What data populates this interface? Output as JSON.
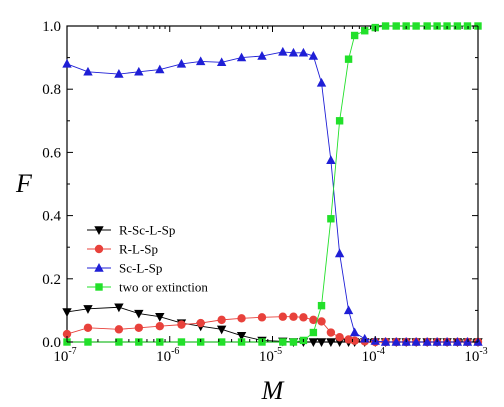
{
  "chart_data": {
    "type": "line",
    "xlabel": "M",
    "ylabel": "F",
    "x_scale": "log",
    "xlim": [
      1e-07,
      0.001
    ],
    "ylim": [
      0,
      1.0
    ],
    "x_ticks": [
      {
        "base": "10",
        "exp": "-7",
        "value": 1e-07
      },
      {
        "base": "10",
        "exp": "-6",
        "value": 1e-06
      },
      {
        "base": "10",
        "exp": "-5",
        "value": 1e-05
      },
      {
        "base": "10",
        "exp": "-4",
        "value": 0.0001
      },
      {
        "base": "10",
        "exp": "-3",
        "value": 0.001
      }
    ],
    "y_ticks": [
      "0.0",
      "0.2",
      "0.4",
      "0.6",
      "0.8",
      "1.0"
    ],
    "y_tick_values": [
      0,
      0.2,
      0.4,
      0.6,
      0.8,
      1.0
    ],
    "grid": false,
    "legend_position": "bottom-left",
    "x": [
      1e-07,
      1.6e-07,
      3.2e-07,
      5e-07,
      8e-07,
      1.3e-06,
      2e-06,
      3.2e-06,
      5e-06,
      7.9e-06,
      1.26e-05,
      1.6e-05,
      2e-05,
      2.5e-05,
      3e-05,
      3.7e-05,
      4.5e-05,
      5.5e-05,
      6.3e-05,
      7.9e-05,
      0.0001,
      0.000126,
      0.00016,
      0.0002,
      0.00025,
      0.00032,
      0.0004,
      0.0005,
      0.00063,
      0.00079,
      0.001
    ],
    "series": [
      {
        "name": "R-Sc-L-Sp",
        "color": "#000000",
        "marker": "triangle-down",
        "values": [
          0.095,
          0.105,
          0.11,
          0.09,
          0.08,
          0.06,
          0.05,
          0.04,
          0.02,
          0.005,
          0.002,
          0.0,
          0.0,
          0.0,
          0.0,
          0.0,
          0.0,
          0.0,
          0.0,
          0.0,
          0.0,
          0.0,
          0.0,
          0.0,
          0.0,
          0.0,
          0.0,
          0.0,
          0.0,
          0.0,
          0.0
        ]
      },
      {
        "name": "R-L-Sp",
        "color": "#e8413b",
        "marker": "circle",
        "values": [
          0.025,
          0.045,
          0.04,
          0.045,
          0.05,
          0.055,
          0.06,
          0.07,
          0.075,
          0.078,
          0.08,
          0.08,
          0.078,
          0.07,
          0.065,
          0.03,
          0.015,
          0.008,
          0.004,
          0.002,
          0.0,
          0.0,
          0.0,
          0.0,
          0.0,
          0.0,
          0.0,
          0.0,
          0.0,
          0.0,
          0.0
        ]
      },
      {
        "name": "Sc-L-Sp",
        "color": "#1f1fd6",
        "marker": "triangle-up",
        "values": [
          0.88,
          0.855,
          0.848,
          0.855,
          0.862,
          0.88,
          0.888,
          0.885,
          0.9,
          0.905,
          0.918,
          0.915,
          0.915,
          0.905,
          0.82,
          0.575,
          0.28,
          0.1,
          0.03,
          0.01,
          0.003,
          0.0,
          0.0,
          0.0,
          0.0,
          0.0,
          0.0,
          0.0,
          0.0,
          0.0,
          0.0
        ]
      },
      {
        "name": "two or extinction",
        "color": "#22e02a",
        "marker": "square",
        "values": [
          0.0,
          0.0,
          0.0,
          0.0,
          0.0,
          0.0,
          0.0,
          0.0,
          0.0,
          0.0,
          0.0,
          0.0,
          0.005,
          0.03,
          0.115,
          0.39,
          0.7,
          0.895,
          0.97,
          0.985,
          0.995,
          1.0,
          1.0,
          1.0,
          1.0,
          1.0,
          1.0,
          1.0,
          1.0,
          1.0,
          1.0
        ]
      }
    ]
  }
}
